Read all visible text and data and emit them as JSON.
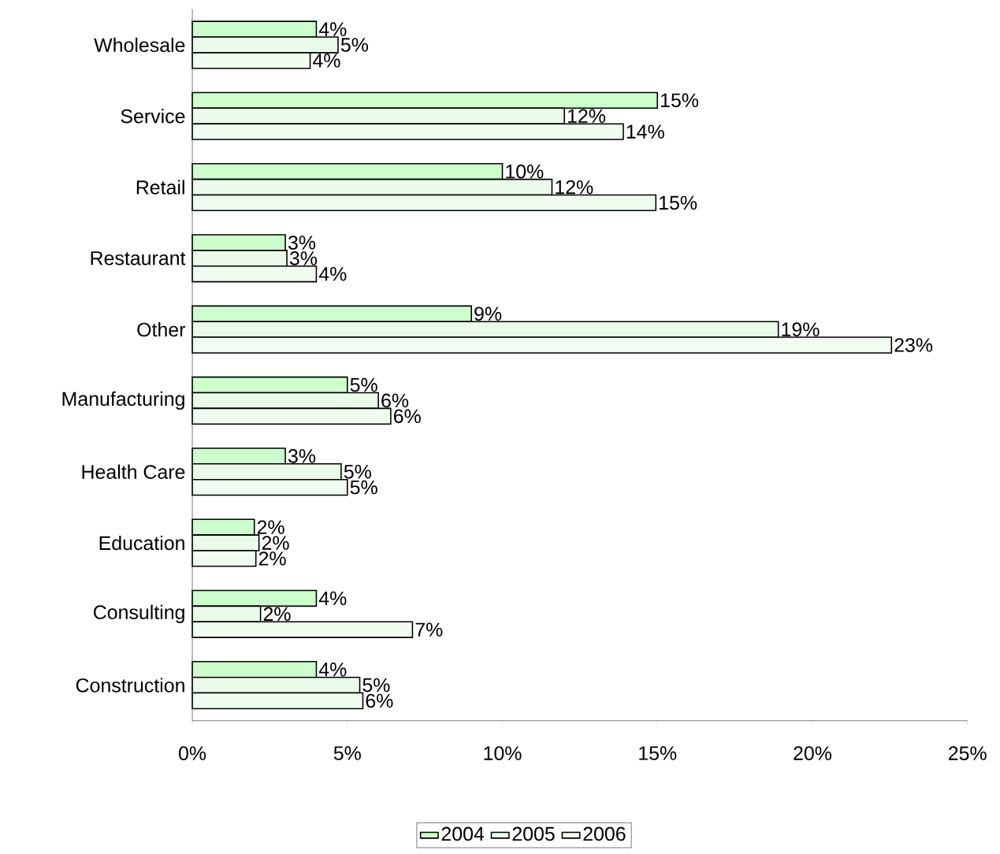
{
  "chart_data": {
    "type": "bar",
    "orientation": "horizontal",
    "categories": [
      "Wholesale",
      "Service",
      "Retail",
      "Restaurant",
      "Other",
      "Manufacturing",
      "Health Care",
      "Education",
      "Consulting",
      "Construction"
    ],
    "series": [
      {
        "name": "2004",
        "color": "#ccffcc",
        "values": [
          4.0,
          15.0,
          10.0,
          3.0,
          9.0,
          5.0,
          3.0,
          2.0,
          4.0,
          4.0
        ],
        "value_labels": [
          "4%",
          "15%",
          "10%",
          "3%",
          "9%",
          "5%",
          "3%",
          "2%",
          "4%",
          "4%"
        ]
      },
      {
        "name": "2005",
        "color": "#eafbea",
        "values": [
          4.7,
          12.0,
          11.6,
          3.05,
          18.9,
          6.0,
          4.8,
          2.15,
          2.2,
          5.4
        ],
        "value_labels": [
          "5%",
          "12%",
          "12%",
          "3%",
          "19%",
          "6%",
          "5%",
          "2%",
          "2%",
          "5%"
        ]
      },
      {
        "name": "2006",
        "color": "#f0fcf0",
        "values": [
          3.8,
          13.9,
          14.95,
          4.0,
          22.55,
          6.4,
          5.0,
          2.05,
          7.1,
          5.5
        ],
        "value_labels": [
          "4%",
          "14%",
          "15%",
          "4%",
          "23%",
          "6%",
          "5%",
          "2%",
          "7%",
          "6%"
        ]
      }
    ],
    "xlim": [
      0,
      25
    ],
    "xticks": [
      {
        "value": 0,
        "label": "0%"
      },
      {
        "value": 5,
        "label": "5%"
      },
      {
        "value": 10,
        "label": "10%"
      },
      {
        "value": 15,
        "label": "15%"
      },
      {
        "value": 20,
        "label": "20%"
      },
      {
        "value": 25,
        "label": "25%"
      }
    ],
    "legend": "bottom",
    "grid": false
  }
}
